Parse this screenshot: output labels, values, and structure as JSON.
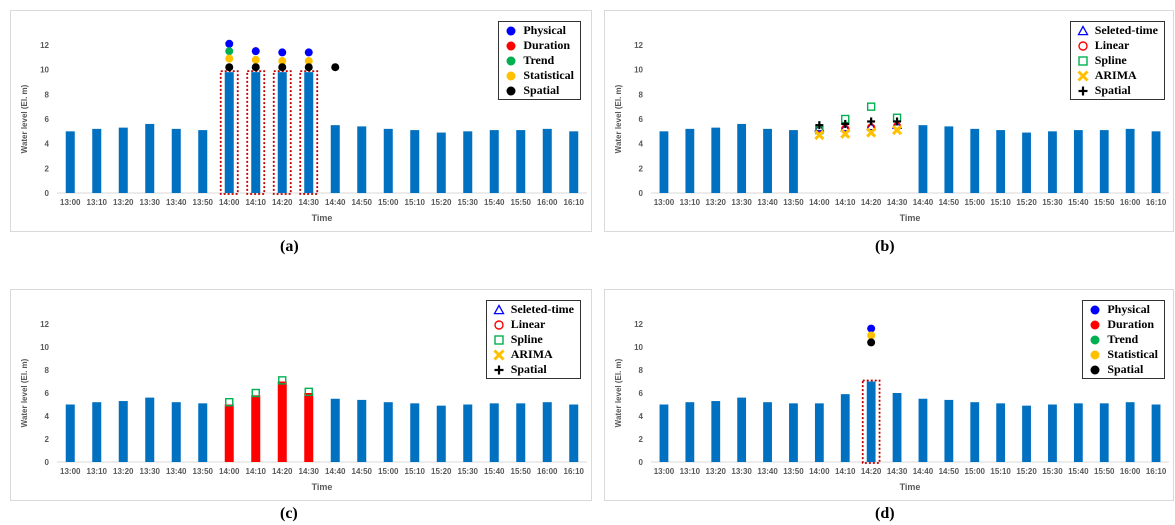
{
  "captions": [
    "(a)",
    "(b)",
    "(c)",
    "(d)"
  ],
  "chart_data": [
    {
      "type": "bar",
      "panel": "a",
      "xlabel": "Time",
      "ylabel": "Water level (El. m)",
      "ylim": [
        0,
        12
      ],
      "yticks": [
        0,
        2,
        4,
        6,
        8,
        10,
        12
      ],
      "categories": [
        "13:00",
        "13:10",
        "13:20",
        "13:30",
        "13:40",
        "13:50",
        "14:00",
        "14:10",
        "14:20",
        "14:30",
        "14:40",
        "14:50",
        "15:00",
        "15:10",
        "15:20",
        "15:30",
        "15:40",
        "15:50",
        "16:00",
        "16:10"
      ],
      "bar_color": "#0070C0",
      "values": [
        5.0,
        5.2,
        5.3,
        5.6,
        5.2,
        5.1,
        9.8,
        9.8,
        9.8,
        9.8,
        5.5,
        5.4,
        5.2,
        5.1,
        4.9,
        5.0,
        5.1,
        5.1,
        5.2,
        5.0
      ],
      "anomaly_boxes": [
        "14:00",
        "14:10",
        "14:20",
        "14:30"
      ],
      "legend": [
        {
          "name": "Physical",
          "marker": "circle",
          "color": "#0000FF"
        },
        {
          "name": "Duration",
          "marker": "circle",
          "color": "#FF0000"
        },
        {
          "name": "Trend",
          "marker": "circle",
          "color": "#00B050"
        },
        {
          "name": "Statistical",
          "marker": "circle",
          "color": "#FFC000"
        },
        {
          "name": "Spatial",
          "marker": "circle",
          "color": "#000000"
        }
      ],
      "series": [
        {
          "name": "Physical",
          "marker": "circle",
          "color": "#0000FF",
          "points": [
            [
              "14:00",
              12.1
            ],
            [
              "14:10",
              11.5
            ],
            [
              "14:20",
              11.4
            ],
            [
              "14:30",
              11.4
            ]
          ]
        },
        {
          "name": "Trend",
          "marker": "circle",
          "color": "#00B050",
          "points": [
            [
              "14:00",
              11.5
            ]
          ]
        },
        {
          "name": "Statistical",
          "marker": "circle",
          "color": "#FFC000",
          "points": [
            [
              "14:00",
              10.9
            ],
            [
              "14:10",
              10.8
            ],
            [
              "14:20",
              10.7
            ],
            [
              "14:30",
              10.7
            ]
          ]
        },
        {
          "name": "Spatial",
          "marker": "circle",
          "color": "#000000",
          "points": [
            [
              "14:00",
              10.2
            ],
            [
              "14:10",
              10.2
            ],
            [
              "14:20",
              10.2
            ],
            [
              "14:30",
              10.2
            ],
            [
              "14:40",
              10.2
            ]
          ]
        }
      ]
    },
    {
      "type": "bar",
      "panel": "b",
      "xlabel": "Time",
      "ylabel": "Water level (El. m)",
      "ylim": [
        0,
        12
      ],
      "yticks": [
        0,
        2,
        4,
        6,
        8,
        10,
        12
      ],
      "categories": [
        "13:00",
        "13:10",
        "13:20",
        "13:30",
        "13:40",
        "13:50",
        "14:00",
        "14:10",
        "14:20",
        "14:30",
        "14:40",
        "14:50",
        "15:00",
        "15:10",
        "15:20",
        "15:30",
        "15:40",
        "15:50",
        "16:00",
        "16:10"
      ],
      "bar_color": "#0070C0",
      "values": [
        5.0,
        5.2,
        5.3,
        5.6,
        5.2,
        5.1,
        null,
        null,
        null,
        null,
        5.5,
        5.4,
        5.2,
        5.1,
        4.9,
        5.0,
        5.1,
        5.1,
        5.2,
        5.0
      ],
      "anomaly_boxes": [],
      "legend": [
        {
          "name": "Seleted-time",
          "marker": "triangle",
          "color": "#0000FF"
        },
        {
          "name": "Linear",
          "marker": "circle-open",
          "color": "#FF0000"
        },
        {
          "name": "Spline",
          "marker": "square-open",
          "color": "#00B050"
        },
        {
          "name": "ARIMA",
          "marker": "x",
          "color": "#FFC000"
        },
        {
          "name": "Spatial",
          "marker": "plus",
          "color": "#000000"
        }
      ],
      "series": [
        {
          "name": "Seleted-time",
          "marker": "triangle",
          "color": "#0000FF",
          "points": [
            [
              "14:00",
              5.3
            ],
            [
              "14:10",
              5.3
            ],
            [
              "14:20",
              5.4
            ],
            [
              "14:30",
              5.5
            ]
          ]
        },
        {
          "name": "Linear",
          "marker": "circle-open",
          "color": "#FF0000",
          "points": [
            [
              "14:00",
              5.2
            ],
            [
              "14:10",
              5.2
            ],
            [
              "14:20",
              5.3
            ],
            [
              "14:30",
              5.4
            ]
          ]
        },
        {
          "name": "Spline",
          "marker": "square-open",
          "color": "#00B050",
          "points": [
            [
              "14:00",
              5.1
            ],
            [
              "14:10",
              6.0
            ],
            [
              "14:20",
              7.0
            ],
            [
              "14:30",
              6.1
            ]
          ]
        },
        {
          "name": "ARIMA",
          "marker": "x",
          "color": "#FFC000",
          "points": [
            [
              "14:00",
              4.7
            ],
            [
              "14:10",
              4.8
            ],
            [
              "14:20",
              4.9
            ],
            [
              "14:30",
              5.1
            ]
          ]
        },
        {
          "name": "Spatial",
          "marker": "plus",
          "color": "#000000",
          "points": [
            [
              "14:00",
              5.5
            ],
            [
              "14:10",
              5.6
            ],
            [
              "14:20",
              5.8
            ],
            [
              "14:30",
              5.8
            ]
          ]
        }
      ]
    },
    {
      "type": "bar",
      "panel": "c",
      "xlabel": "Time",
      "ylabel": "Water level (El. m)",
      "ylim": [
        0,
        12
      ],
      "yticks": [
        0,
        2,
        4,
        6,
        8,
        10,
        12
      ],
      "categories": [
        "13:00",
        "13:10",
        "13:20",
        "13:30",
        "13:40",
        "13:50",
        "14:00",
        "14:10",
        "14:20",
        "14:30",
        "14:40",
        "14:50",
        "15:00",
        "15:10",
        "15:20",
        "15:30",
        "15:40",
        "15:50",
        "16:00",
        "16:10"
      ],
      "bar_color": "#0070C0",
      "highlight_color": "#FF0000",
      "highlight_categories": [
        "14:00",
        "14:10",
        "14:20",
        "14:30"
      ],
      "values": [
        5.0,
        5.2,
        5.3,
        5.6,
        5.2,
        5.1,
        5.0,
        5.8,
        7.0,
        6.0,
        5.5,
        5.4,
        5.2,
        5.1,
        4.9,
        5.0,
        5.1,
        5.1,
        5.2,
        5.0
      ],
      "anomaly_boxes": [],
      "legend": [
        {
          "name": "Seleted-time",
          "marker": "triangle",
          "color": "#0000FF"
        },
        {
          "name": "Linear",
          "marker": "circle-open",
          "color": "#FF0000"
        },
        {
          "name": "Spline",
          "marker": "square-open",
          "color": "#00B050"
        },
        {
          "name": "ARIMA",
          "marker": "x",
          "color": "#FFC000"
        },
        {
          "name": "Spatial",
          "marker": "plus",
          "color": "#000000"
        }
      ],
      "series": [
        {
          "name": "Spline",
          "marker": "square-open",
          "color": "#00B050",
          "points": [
            [
              "14:00",
              5.2
            ],
            [
              "14:10",
              6.0
            ],
            [
              "14:20",
              7.1
            ],
            [
              "14:30",
              6.1
            ]
          ]
        }
      ]
    },
    {
      "type": "bar",
      "panel": "d",
      "xlabel": "Time",
      "ylabel": "Water level (El. m)",
      "ylim": [
        0,
        12
      ],
      "yticks": [
        0,
        2,
        4,
        6,
        8,
        10,
        12
      ],
      "categories": [
        "13:00",
        "13:10",
        "13:20",
        "13:30",
        "13:40",
        "13:50",
        "14:00",
        "14:10",
        "14:20",
        "14:30",
        "14:40",
        "14:50",
        "15:00",
        "15:10",
        "15:20",
        "15:30",
        "15:40",
        "15:50",
        "16:00",
        "16:10"
      ],
      "bar_color": "#0070C0",
      "values": [
        5.0,
        5.2,
        5.3,
        5.6,
        5.2,
        5.1,
        5.1,
        5.9,
        7.0,
        6.0,
        5.5,
        5.4,
        5.2,
        5.1,
        4.9,
        5.0,
        5.1,
        5.1,
        5.2,
        5.0
      ],
      "anomaly_boxes": [
        "14:20"
      ],
      "legend": [
        {
          "name": "Physical",
          "marker": "circle",
          "color": "#0000FF"
        },
        {
          "name": "Duration",
          "marker": "circle",
          "color": "#FF0000"
        },
        {
          "name": "Trend",
          "marker": "circle",
          "color": "#00B050"
        },
        {
          "name": "Statistical",
          "marker": "circle",
          "color": "#FFC000"
        },
        {
          "name": "Spatial",
          "marker": "circle",
          "color": "#000000"
        }
      ],
      "series": [
        {
          "name": "Physical",
          "marker": "circle",
          "color": "#0000FF",
          "points": [
            [
              "14:20",
              11.6
            ]
          ]
        },
        {
          "name": "Statistical",
          "marker": "circle",
          "color": "#FFC000",
          "points": [
            [
              "14:20",
              11.0
            ]
          ]
        },
        {
          "name": "Spatial",
          "marker": "circle",
          "color": "#000000",
          "points": [
            [
              "14:20",
              10.4
            ]
          ]
        }
      ]
    }
  ]
}
